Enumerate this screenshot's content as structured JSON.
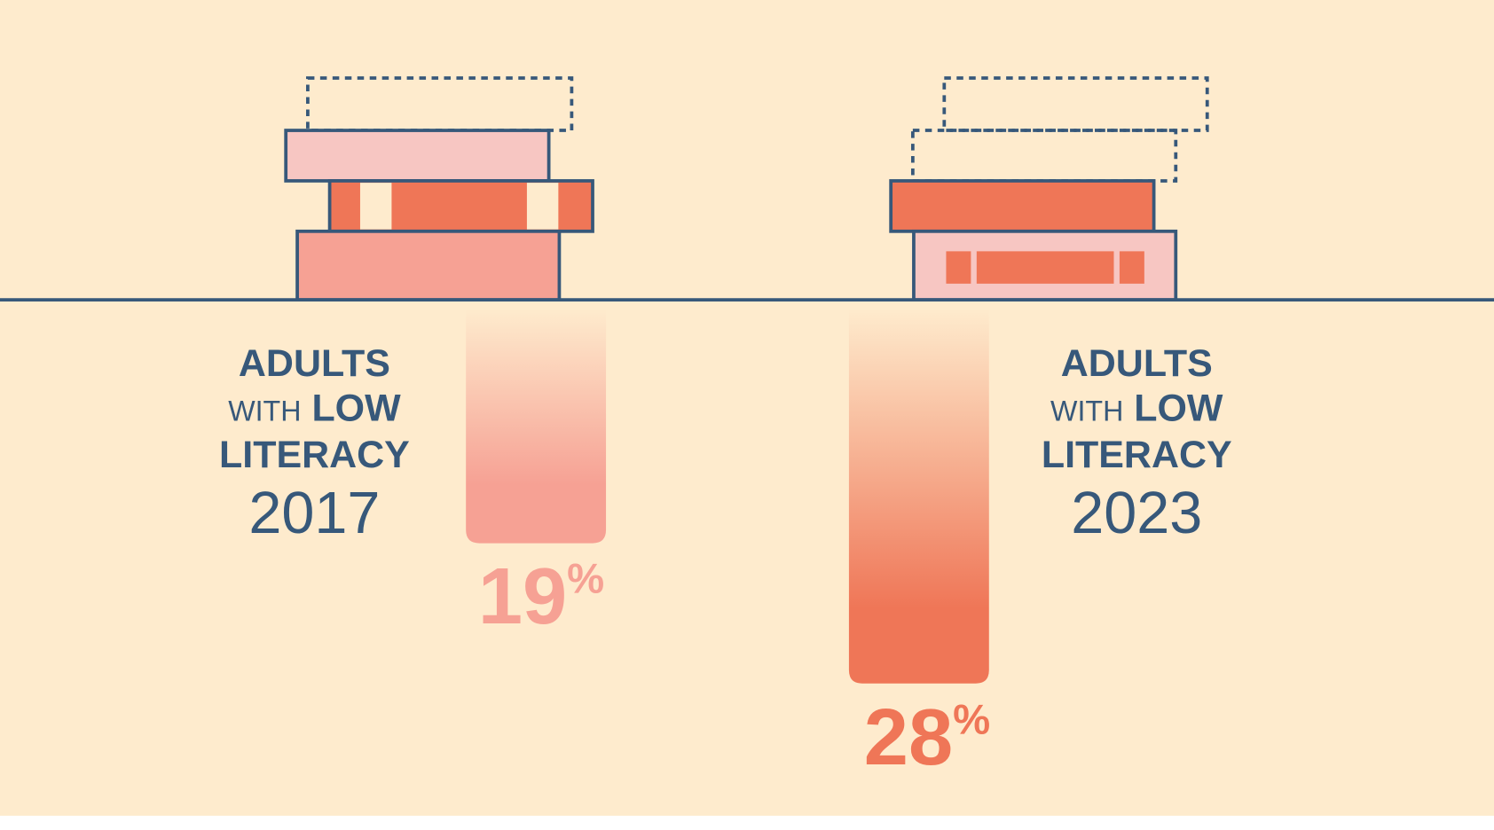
{
  "chart_data": {
    "type": "bar",
    "title": "",
    "categories": [
      "2017",
      "2023"
    ],
    "values": [
      19,
      28
    ],
    "unit": "%",
    "ylim": [
      0,
      30
    ],
    "series": [
      {
        "name": "Adults with low literacy",
        "values": [
          19,
          28
        ]
      }
    ],
    "groups": [
      {
        "line1": "ADULTS",
        "line2a": "WITH",
        "line2b": "LOW",
        "line3": "LITERACY",
        "year": "2017",
        "value": "19",
        "pct": "%",
        "color": "#f6a194"
      },
      {
        "line1": "ADULTS",
        "line2a": "WITH",
        "line2b": "LOW",
        "line3": "LITERACY",
        "year": "2023",
        "value": "28",
        "pct": "%",
        "color": "#ef7657"
      }
    ],
    "xlabel": "",
    "ylabel": "",
    "grid": false
  },
  "colors": {
    "background": "#feebcd",
    "ink": "#37587a",
    "light_pink": "#f7c6c2",
    "salmon": "#f6a194",
    "orange": "#ef7657"
  }
}
